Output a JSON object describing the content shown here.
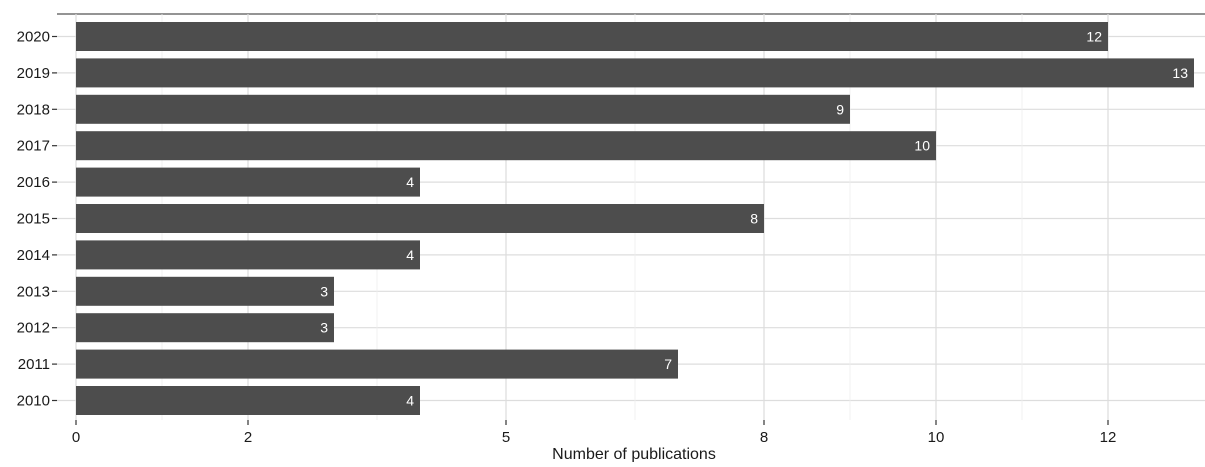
{
  "chart_data": {
    "type": "bar",
    "orientation": "horizontal",
    "categories": [
      "2010",
      "2011",
      "2012",
      "2013",
      "2014",
      "2015",
      "2016",
      "2017",
      "2018",
      "2019",
      "2020"
    ],
    "values": [
      4,
      7,
      3,
      3,
      4,
      8,
      4,
      10,
      9,
      13,
      12
    ],
    "data_labels": [
      "4",
      "7",
      "3",
      "3",
      "4",
      "8",
      "4",
      "10",
      "9",
      "13",
      "12"
    ],
    "xlabel": "Number of publications",
    "ylabel": "",
    "x_ticks": [
      0,
      2,
      5,
      8,
      10,
      12
    ],
    "x_tick_labels": [
      "0",
      "2",
      "5",
      "8",
      "10",
      "12"
    ],
    "xlim": [
      0,
      13
    ],
    "grid": true,
    "colors": {
      "bar": "#4d4d4d",
      "bar_label": "#ffffff",
      "grid": "#dddddd",
      "text": "#1a1a1a"
    }
  }
}
